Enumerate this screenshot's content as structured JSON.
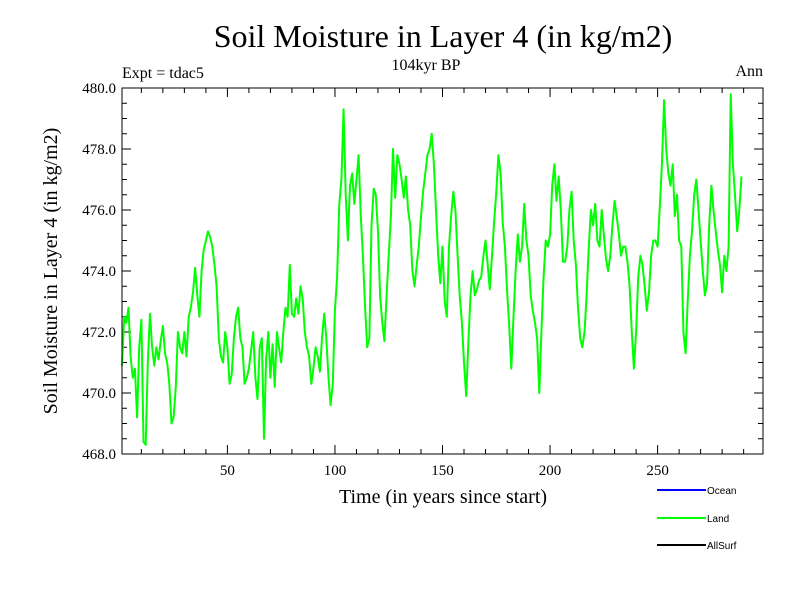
{
  "chart_data": {
    "type": "line",
    "title": "Soil Moisture in Layer 4 (in kg/m2)",
    "subtitle": "104kyr BP",
    "annotation_left": "Expt = tdac5",
    "annotation_right": "Ann",
    "xlabel": "Time (in years since start)",
    "ylabel": "Soil Moisture in Layer 4 (in kg/m2)",
    "xlim": [
      1,
      299
    ],
    "ylim": [
      468,
      480
    ],
    "x_ticks": [
      50,
      100,
      150,
      200,
      250
    ],
    "x_tick_labels": [
      "50",
      "100",
      "150",
      "200",
      "250"
    ],
    "y_ticks": [
      468,
      470,
      472,
      474,
      476,
      478,
      480
    ],
    "y_tick_labels": [
      "468.0",
      "470.0",
      "472.0",
      "474.0",
      "476.0",
      "478.0",
      "480.0"
    ],
    "legend": [
      {
        "name": "Ocean",
        "color": "#0000ff"
      },
      {
        "name": "Land",
        "color": "#00ff00"
      },
      {
        "name": "AllSurf",
        "color": "#000000"
      }
    ],
    "legend_position": "bottom-right",
    "series": [
      {
        "name": "Land",
        "color": "#00ff00",
        "x_start": 1,
        "x_step": 1,
        "values": [
          470.9,
          472.5,
          472.3,
          472.8,
          471.2,
          470.5,
          470.8,
          469.2,
          471.5,
          472.4,
          468.4,
          468.3,
          471.0,
          472.6,
          471.5,
          470.9,
          471.5,
          471.1,
          471.7,
          472.2,
          471.3,
          471.0,
          470.3,
          469.0,
          469.2,
          470.2,
          472.0,
          471.5,
          471.3,
          472.0,
          471.2,
          472.5,
          472.8,
          473.3,
          474.1,
          473.2,
          472.5,
          474.0,
          474.7,
          475.0,
          475.3,
          475.1,
          474.8,
          474.2,
          473.5,
          471.8,
          471.2,
          471.0,
          472.0,
          471.5,
          470.3,
          470.6,
          471.8,
          472.5,
          472.8,
          471.8,
          471.5,
          470.3,
          470.5,
          470.8,
          471.4,
          472.0,
          470.5,
          469.8,
          471.5,
          471.8,
          468.5,
          471.1,
          472.0,
          470.5,
          471.6,
          470.2,
          472.0,
          471.5,
          471.0,
          472.0,
          472.8,
          472.5,
          474.2,
          472.6,
          472.5,
          473.1,
          472.6,
          473.5,
          473.1,
          472.0,
          471.5,
          471.2,
          470.3,
          470.8,
          471.5,
          471.2,
          470.7,
          471.8,
          472.6,
          471.8,
          470.5,
          469.6,
          470.3,
          472.7,
          473.8,
          476.2,
          477.0,
          479.3,
          476.5,
          475.0,
          476.8,
          477.2,
          476.2,
          477.0,
          477.8,
          475.8,
          474.5,
          472.8,
          471.5,
          471.8,
          475.5,
          476.7,
          476.5,
          475.3,
          473.2,
          472.3,
          471.7,
          473.2,
          474.5,
          475.8,
          478.0,
          476.4,
          477.8,
          477.5,
          477.0,
          476.4,
          477.1,
          476.0,
          475.5,
          474.0,
          473.5,
          474.2,
          474.8,
          475.8,
          476.6,
          477.2,
          477.8,
          478.0,
          478.5,
          477.5,
          476.0,
          474.5,
          473.6,
          474.8,
          473.0,
          472.5,
          474.8,
          475.8,
          476.6,
          476.0,
          474.5,
          473.2,
          472.3,
          471.0,
          469.9,
          471.6,
          473.2,
          474.0,
          473.2,
          473.4,
          473.7,
          473.8,
          474.5,
          475.0,
          474.2,
          473.4,
          474.5,
          475.6,
          476.6,
          477.8,
          477.2,
          475.6,
          474.8,
          473.4,
          472.2,
          470.8,
          472.5,
          474.0,
          475.2,
          474.3,
          474.8,
          476.2,
          475.0,
          474.5,
          473.2,
          472.7,
          472.3,
          471.8,
          470.0,
          472.0,
          473.8,
          475.0,
          474.8,
          475.2,
          476.8,
          477.5,
          476.3,
          477.1,
          476.0,
          474.3,
          474.3,
          474.8,
          476.0,
          476.6,
          475.0,
          474.2,
          472.8,
          471.8,
          471.5,
          472.0,
          473.2,
          474.8,
          476.0,
          475.5,
          476.2,
          475.0,
          474.8,
          476.0,
          475.2,
          474.4,
          474.0,
          474.5,
          475.5,
          476.3,
          475.8,
          475.2,
          474.5,
          474.8,
          474.8,
          474.3,
          473.5,
          472.0,
          470.8,
          472.0,
          473.8,
          474.5,
          474.2,
          473.5,
          472.7,
          473.3,
          474.5,
          475.0,
          475.0,
          474.8,
          476.1,
          477.5,
          479.6,
          478.0,
          477.2,
          476.8,
          477.5,
          475.8,
          476.5,
          475.0,
          474.8,
          472.0,
          471.3,
          473.0,
          474.5,
          475.3,
          476.5,
          477.0,
          476.0,
          475.0,
          474.0,
          473.2,
          473.6,
          475.5,
          476.8,
          476.0,
          475.3,
          474.7,
          474.2,
          473.3,
          474.5,
          474.0,
          474.8,
          479.8,
          477.5,
          476.5,
          475.3,
          476.0,
          477.1
        ]
      }
    ]
  }
}
